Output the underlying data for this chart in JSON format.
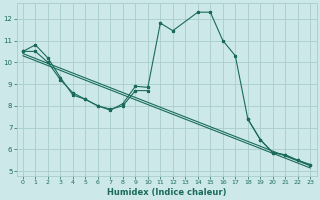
{
  "xlabel": "Humidex (Indice chaleur)",
  "bg_color": "#cce8e8",
  "grid_color": "#aacccc",
  "line_color": "#1a6b5a",
  "xlim": [
    -0.5,
    23.5
  ],
  "ylim": [
    4.8,
    12.7
  ],
  "xticks": [
    0,
    1,
    2,
    3,
    4,
    5,
    6,
    7,
    8,
    9,
    10,
    11,
    12,
    13,
    14,
    15,
    16,
    17,
    18,
    19,
    20,
    21,
    22,
    23
  ],
  "yticks": [
    5,
    6,
    7,
    8,
    9,
    10,
    11,
    12
  ],
  "main_x": [
    0,
    1,
    2,
    3,
    4,
    5,
    6,
    7,
    8,
    9,
    10,
    11,
    12,
    14,
    15,
    16,
    17,
    18,
    19,
    20,
    21,
    22,
    23
  ],
  "main_y": [
    10.5,
    10.8,
    10.2,
    9.3,
    8.5,
    8.3,
    8.0,
    7.8,
    8.1,
    8.9,
    8.85,
    11.8,
    11.45,
    12.3,
    12.3,
    11.0,
    10.3,
    7.4,
    6.45,
    5.85,
    5.75,
    5.5,
    5.3
  ],
  "smooth_x": [
    0,
    1,
    2,
    3,
    4,
    5,
    6,
    7,
    8,
    9,
    10
  ],
  "smooth_y": [
    10.5,
    10.5,
    10.0,
    9.2,
    8.6,
    8.3,
    8.0,
    7.85,
    8.0,
    8.7,
    8.7
  ],
  "trend1_x": [
    0,
    23
  ],
  "trend1_y": [
    10.4,
    5.25
  ],
  "trend2_x": [
    0,
    23
  ],
  "trend2_y": [
    10.3,
    5.15
  ],
  "tail_x": [
    18,
    19,
    20,
    21,
    22,
    23
  ],
  "tail_y": [
    7.4,
    6.45,
    5.85,
    5.75,
    5.5,
    5.3
  ]
}
